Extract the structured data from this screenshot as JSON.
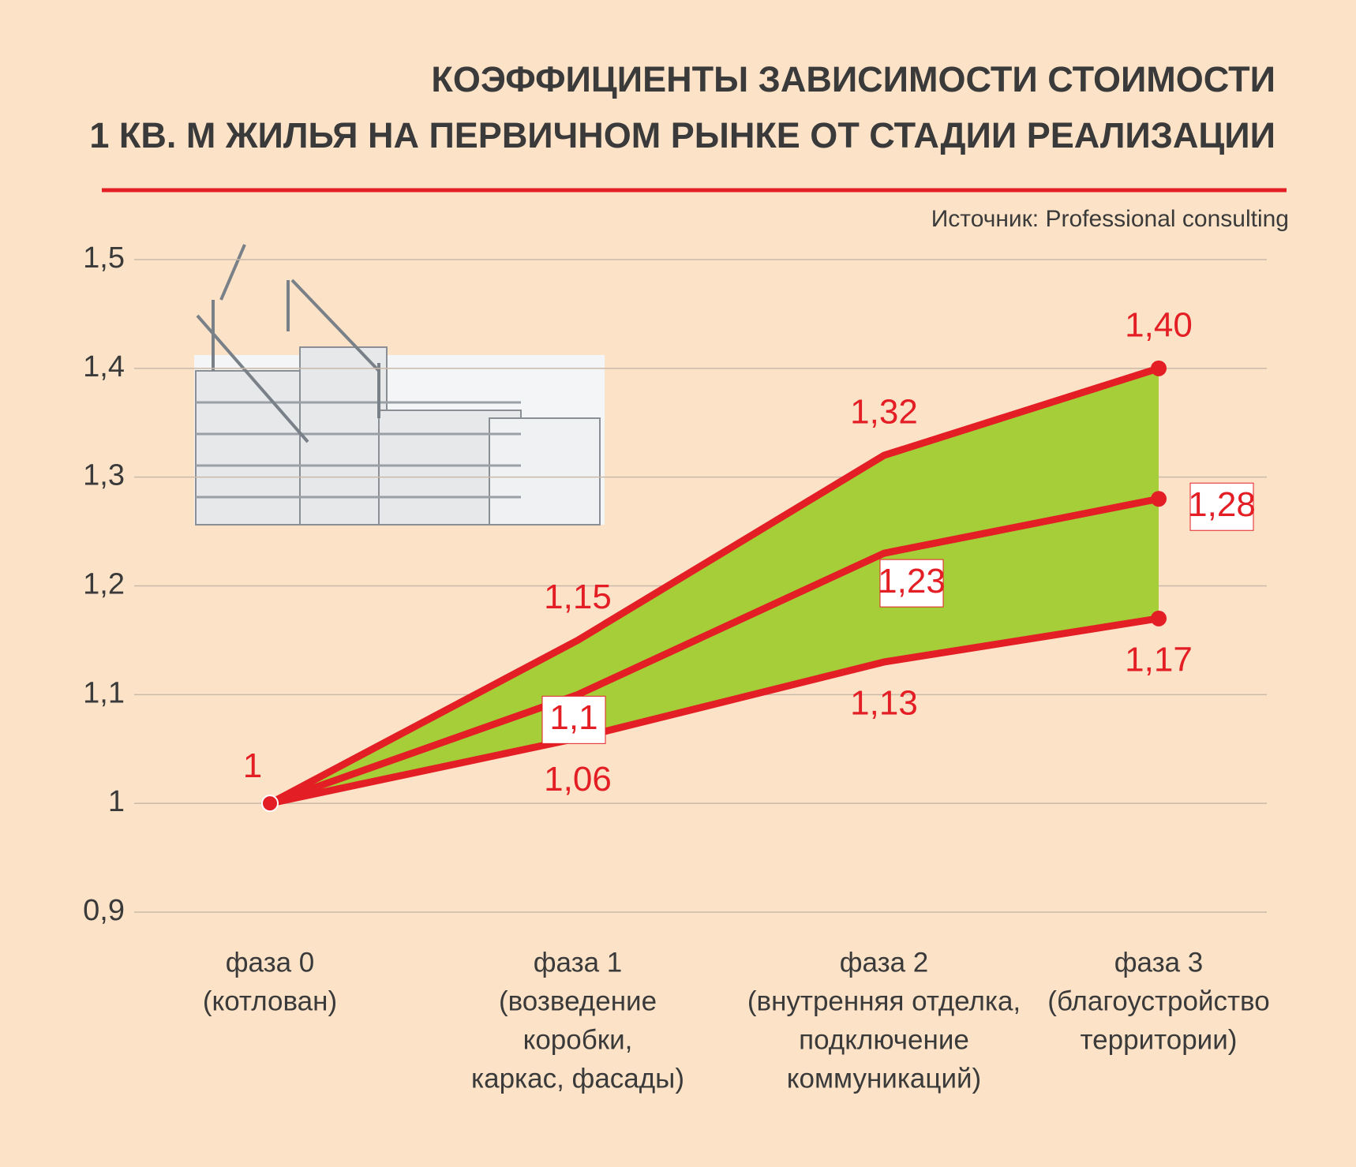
{
  "chart_data": {
    "type": "band",
    "title": [
      "КОЭФФИЦИЕНТЫ ЗАВИСИМОСТИ СТОИМОСТИ",
      "1 КВ. М ЖИЛЬЯ НА ПЕРВИЧНОМ РЫНКЕ ОТ СТАДИИ РЕАЛИЗАЦИИ"
    ],
    "source": "Источник: Professional consulting",
    "categories": [
      [
        "фаза 0",
        "(котлован)"
      ],
      [
        "фаза 1",
        "(возведение",
        "коробки,",
        "каркас, фасады)"
      ],
      [
        "фаза 2",
        "(внутренняя отделка,",
        "подключение",
        "коммуникаций)"
      ],
      [
        "фаза 3",
        "(благоустройство",
        "территории)"
      ]
    ],
    "series": [
      {
        "color": "#e31e24",
        "values": [
          1,
          1.15,
          1.32,
          1.4
        ],
        "value_labels": [
          "1",
          "1,15",
          "1,32",
          "1,40"
        ]
      },
      {
        "color": "#e31e24",
        "values": [
          1,
          1.1,
          1.23,
          1.28
        ],
        "value_labels": [
          null,
          "1,1",
          "1,23",
          "1,28"
        ]
      },
      {
        "color": "#e31e24",
        "values": [
          1,
          1.06,
          1.13,
          1.17
        ],
        "value_labels": [
          null,
          "1,06",
          "1,13",
          "1,17"
        ]
      }
    ],
    "band_color": "#a6ce39",
    "ylim": [
      0.9,
      1.5
    ],
    "yticks": [
      {
        "value": 0.9,
        "label": "0,9"
      },
      1,
      {
        "value": 1.1,
        "label": "1,1"
      },
      {
        "value": 1.2,
        "label": "1,2"
      },
      {
        "value": 1.3,
        "label": "1,3"
      },
      {
        "value": 1.4,
        "label": "1,4"
      },
      {
        "value": 1.5,
        "label": "1,5"
      }
    ],
    "grid": true
  }
}
